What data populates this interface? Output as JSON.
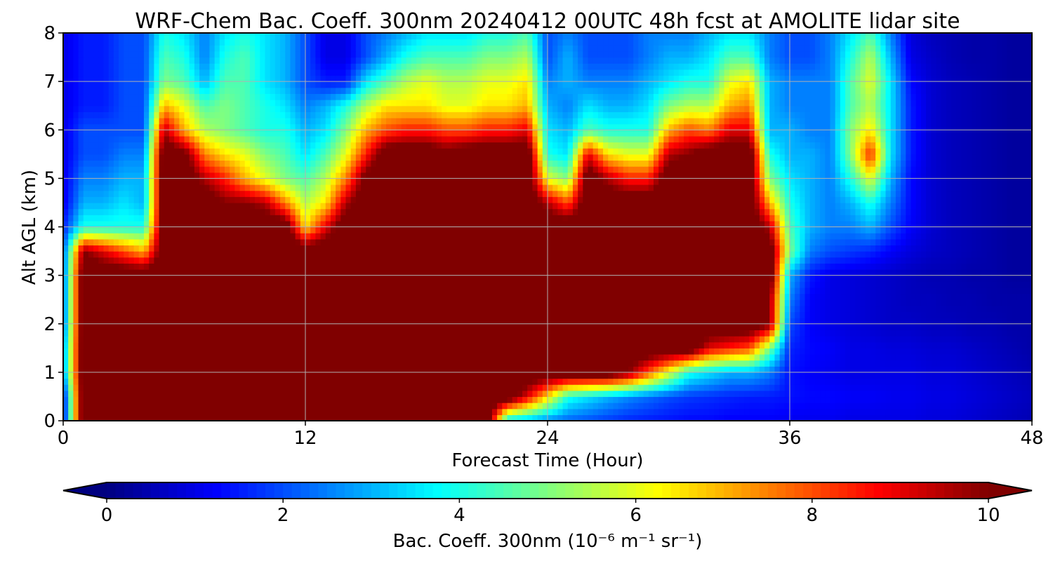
{
  "chart_data": {
    "type": "heatmap",
    "title": "WRF-Chem Bac. Coeff. 300nm  20240412 00UTC 48h fcst at AMOLITE lidar site",
    "xlabel": "Forecast Time (Hour)",
    "ylabel": "Alt AGL (km)",
    "xlim": [
      0,
      48
    ],
    "ylim": [
      0,
      8
    ],
    "x_ticks": [
      "0",
      "12",
      "24",
      "36",
      "48"
    ],
    "y_ticks": [
      "0",
      "1",
      "2",
      "3",
      "4",
      "5",
      "6",
      "7",
      "8"
    ],
    "grid": true,
    "colormap": "jet",
    "colorbar": {
      "label": "Bac. Coeff. 300nm  (10⁻⁶ m⁻¹ sr⁻¹)",
      "range": [
        0,
        10
      ],
      "ticks": [
        "0",
        "2",
        "4",
        "6",
        "8",
        "10"
      ],
      "extend": "both"
    },
    "x": [
      0,
      1,
      2,
      3,
      4,
      5,
      6,
      7,
      8,
      9,
      10,
      11,
      12,
      13,
      14,
      15,
      16,
      17,
      18,
      19,
      20,
      21,
      22,
      23,
      24,
      25,
      26,
      27,
      28,
      29,
      30,
      31,
      32,
      33,
      34,
      35,
      36,
      37,
      38,
      39,
      40,
      41,
      42,
      43,
      44,
      45,
      46,
      47,
      48
    ],
    "y": [
      0,
      0.5,
      1,
      1.5,
      2,
      2.5,
      3,
      3.5,
      4,
      4.5,
      5,
      5.5,
      6,
      6.5,
      7,
      7.5,
      8
    ],
    "values": [
      [
        1.0,
        11.0,
        11.0,
        11.0,
        11.0,
        11.0,
        11.0,
        11.0,
        11.0,
        11.0,
        11.0,
        11.0,
        11.0,
        11.0,
        11.0,
        11.0,
        11.0,
        11.0,
        11.0,
        11.0,
        11.0,
        11.0,
        3.5,
        3.0,
        2.5,
        2.2,
        2.0,
        1.8,
        1.6,
        1.5,
        1.4,
        1.3,
        1.3,
        1.2,
        1.2,
        1.2,
        1.1,
        1.1,
        1.1,
        1.0,
        1.0,
        1.0,
        1.0,
        0.9,
        0.9,
        0.8,
        0.7,
        0.6,
        0.5
      ],
      [
        1.0,
        11.0,
        11.0,
        11.0,
        11.0,
        11.0,
        11.0,
        11.0,
        11.0,
        11.0,
        11.0,
        11.0,
        11.0,
        11.0,
        11.0,
        11.0,
        11.0,
        11.0,
        11.0,
        11.0,
        11.0,
        11.0,
        11.0,
        9.0,
        6.5,
        4.0,
        3.5,
        3.0,
        2.6,
        2.3,
        2.0,
        1.8,
        1.7,
        1.6,
        1.5,
        1.5,
        1.4,
        1.3,
        1.3,
        1.2,
        1.2,
        1.1,
        1.1,
        1.0,
        1.0,
        0.9,
        0.8,
        0.7,
        0.6
      ],
      [
        2.5,
        11.0,
        11.0,
        11.0,
        11.0,
        11.0,
        11.0,
        11.0,
        11.0,
        11.0,
        11.0,
        11.0,
        11.0,
        11.0,
        11.0,
        11.0,
        11.0,
        11.0,
        11.0,
        11.0,
        11.0,
        11.0,
        11.0,
        11.0,
        11.0,
        11.0,
        11.0,
        11.0,
        10.0,
        8.0,
        6.0,
        4.0,
        3.5,
        3.0,
        3.0,
        2.5,
        1.4,
        1.2,
        1.1,
        1.0,
        1.0,
        1.0,
        1.0,
        0.9,
        0.9,
        0.8,
        0.7,
        0.6,
        0.5
      ],
      [
        2.5,
        11.0,
        11.0,
        11.0,
        11.0,
        11.0,
        11.0,
        11.0,
        11.0,
        11.0,
        11.0,
        11.0,
        11.0,
        11.0,
        11.0,
        11.0,
        11.0,
        11.0,
        11.0,
        11.0,
        11.0,
        11.0,
        11.0,
        11.0,
        11.0,
        11.0,
        11.0,
        11.0,
        11.0,
        11.0,
        11.0,
        11.0,
        9.0,
        8.5,
        8.0,
        5.0,
        1.6,
        1.3,
        1.2,
        1.0,
        1.0,
        0.9,
        0.9,
        0.8,
        0.8,
        0.7,
        0.6,
        0.5,
        0.4
      ],
      [
        2.0,
        11.0,
        11.0,
        11.0,
        11.0,
        11.0,
        11.0,
        11.0,
        11.0,
        11.0,
        11.0,
        11.0,
        11.0,
        11.0,
        11.0,
        11.0,
        11.0,
        11.0,
        11.0,
        11.0,
        11.0,
        11.0,
        11.0,
        11.0,
        11.0,
        11.0,
        11.0,
        11.0,
        11.0,
        11.0,
        11.0,
        11.0,
        11.0,
        11.0,
        11.0,
        10.0,
        2.0,
        1.2,
        1.0,
        0.9,
        0.8,
        0.7,
        0.7,
        0.6,
        0.6,
        0.5,
        0.5,
        0.4,
        0.4
      ],
      [
        2.0,
        11.0,
        11.0,
        11.0,
        11.0,
        11.0,
        11.0,
        11.0,
        11.0,
        11.0,
        11.0,
        11.0,
        11.0,
        11.0,
        11.0,
        11.0,
        11.0,
        11.0,
        11.0,
        11.0,
        11.0,
        11.0,
        11.0,
        11.0,
        11.0,
        11.0,
        11.0,
        11.0,
        11.0,
        11.0,
        11.0,
        11.0,
        11.0,
        11.0,
        11.0,
        10.0,
        2.5,
        1.2,
        1.0,
        0.9,
        0.8,
        0.7,
        0.6,
        0.6,
        0.5,
        0.5,
        0.4,
        0.4,
        0.4
      ],
      [
        2.0,
        11.0,
        11.0,
        11.0,
        11.0,
        11.0,
        11.0,
        11.0,
        11.0,
        11.0,
        11.0,
        11.0,
        11.0,
        11.0,
        11.0,
        11.0,
        11.0,
        11.0,
        11.0,
        11.0,
        11.0,
        11.0,
        11.0,
        11.0,
        11.0,
        11.0,
        11.0,
        11.0,
        11.0,
        11.0,
        11.0,
        11.0,
        11.0,
        11.0,
        11.0,
        11.0,
        3.0,
        1.5,
        1.0,
        0.9,
        0.8,
        0.7,
        0.6,
        0.5,
        0.5,
        0.4,
        0.4,
        0.3,
        0.3
      ],
      [
        2.0,
        10.0,
        9.0,
        8.0,
        7.0,
        11.0,
        11.0,
        11.0,
        11.0,
        11.0,
        11.0,
        11.0,
        11.0,
        11.0,
        11.0,
        11.0,
        11.0,
        11.0,
        11.0,
        11.0,
        11.0,
        11.0,
        11.0,
        11.0,
        11.0,
        11.0,
        11.0,
        11.0,
        11.0,
        11.0,
        11.0,
        11.0,
        11.0,
        11.0,
        11.0,
        11.0,
        5.0,
        2.5,
        2.0,
        1.8,
        1.6,
        1.2,
        0.9,
        0.7,
        0.6,
        0.5,
        0.4,
        0.3,
        0.3
      ],
      [
        1.5,
        4.0,
        4.0,
        4.0,
        4.0,
        11.0,
        11.0,
        11.0,
        11.0,
        11.0,
        11.0,
        11.0,
        6.5,
        9.0,
        11.0,
        11.0,
        11.0,
        11.0,
        11.0,
        11.0,
        11.0,
        11.0,
        11.0,
        11.0,
        11.0,
        11.0,
        11.0,
        11.0,
        11.0,
        11.0,
        11.0,
        11.0,
        11.0,
        11.0,
        11.0,
        9.5,
        4.5,
        3.0,
        2.5,
        2.5,
        3.0,
        2.0,
        1.2,
        0.8,
        0.6,
        0.5,
        0.4,
        0.3,
        0.3
      ],
      [
        1.0,
        3.0,
        3.0,
        3.5,
        3.0,
        11.0,
        11.0,
        11.0,
        10.0,
        10.0,
        9.5,
        7.5,
        5.5,
        6.5,
        9.5,
        11.0,
        11.0,
        11.0,
        11.0,
        11.0,
        11.0,
        11.0,
        11.0,
        11.0,
        9.5,
        8.0,
        11.0,
        11.0,
        11.0,
        11.0,
        11.0,
        11.0,
        11.0,
        11.0,
        11.0,
        7.0,
        4.0,
        3.0,
        2.5,
        3.0,
        4.0,
        2.5,
        1.3,
        0.8,
        0.6,
        0.5,
        0.4,
        0.3,
        0.3
      ],
      [
        1.0,
        2.5,
        2.5,
        3.0,
        3.0,
        11.0,
        11.0,
        9.5,
        8.5,
        7.0,
        6.0,
        5.0,
        4.5,
        5.5,
        7.5,
        10.5,
        11.0,
        11.0,
        11.0,
        11.0,
        11.0,
        11.0,
        11.0,
        11.0,
        6.0,
        5.0,
        11.0,
        9.5,
        8.5,
        8.5,
        11.0,
        11.0,
        11.0,
        11.0,
        11.0,
        5.0,
        3.5,
        3.0,
        2.5,
        4.0,
        6.0,
        3.0,
        1.3,
        0.8,
        0.6,
        0.5,
        0.4,
        0.3,
        0.3
      ],
      [
        1.0,
        2.0,
        2.0,
        2.5,
        2.5,
        11.0,
        10.5,
        7.5,
        6.5,
        6.0,
        5.0,
        4.5,
        3.5,
        4.5,
        6.0,
        8.5,
        11.0,
        11.0,
        11.0,
        10.5,
        11.0,
        11.0,
        11.0,
        11.0,
        4.0,
        3.5,
        9.0,
        6.5,
        6.0,
        6.0,
        9.5,
        10.0,
        11.0,
        11.0,
        11.0,
        4.0,
        3.0,
        3.0,
        2.5,
        5.0,
        8.5,
        3.5,
        1.5,
        0.8,
        0.6,
        0.5,
        0.4,
        0.3,
        0.3
      ],
      [
        1.0,
        2.0,
        2.0,
        2.0,
        2.0,
        9.5,
        7.0,
        5.5,
        5.0,
        4.5,
        4.0,
        4.0,
        3.0,
        3.5,
        5.0,
        7.0,
        8.0,
        8.5,
        8.5,
        8.0,
        8.0,
        8.5,
        8.5,
        9.0,
        3.5,
        3.0,
        4.5,
        4.0,
        4.0,
        4.0,
        7.0,
        8.0,
        7.5,
        9.0,
        9.0,
        3.0,
        3.0,
        2.5,
        2.5,
        5.0,
        6.5,
        3.5,
        1.5,
        0.8,
        0.6,
        0.5,
        0.4,
        0.3,
        0.3
      ],
      [
        1.0,
        1.5,
        1.5,
        2.0,
        2.0,
        7.0,
        6.0,
        4.5,
        5.0,
        4.5,
        4.0,
        3.5,
        2.5,
        3.0,
        4.0,
        5.5,
        6.5,
        6.5,
        6.5,
        6.0,
        6.0,
        6.5,
        6.5,
        7.0,
        3.0,
        2.5,
        3.5,
        3.0,
        3.0,
        3.5,
        5.0,
        5.5,
        5.5,
        7.0,
        7.5,
        3.0,
        2.5,
        2.5,
        2.5,
        4.5,
        5.5,
        3.5,
        1.5,
        0.8,
        0.6,
        0.5,
        0.4,
        0.3,
        0.3
      ],
      [
        1.0,
        1.5,
        1.5,
        2.0,
        2.0,
        5.0,
        4.5,
        3.0,
        4.5,
        4.5,
        3.5,
        3.0,
        2.0,
        1.5,
        1.5,
        3.5,
        4.5,
        5.5,
        6.0,
        5.5,
        5.5,
        6.0,
        6.0,
        6.5,
        2.5,
        3.0,
        2.5,
        2.5,
        2.5,
        3.0,
        3.5,
        4.0,
        4.0,
        6.0,
        6.5,
        3.0,
        2.5,
        2.5,
        2.5,
        4.5,
        6.0,
        3.5,
        1.3,
        0.8,
        0.6,
        0.5,
        0.4,
        0.3,
        0.3
      ],
      [
        1.0,
        1.5,
        1.5,
        2.0,
        2.0,
        4.5,
        4.0,
        2.5,
        4.0,
        4.5,
        3.5,
        3.0,
        2.0,
        1.0,
        1.0,
        2.0,
        3.0,
        4.0,
        4.5,
        4.5,
        4.5,
        5.0,
        5.0,
        5.5,
        2.0,
        3.0,
        2.0,
        2.0,
        2.0,
        2.5,
        3.0,
        3.0,
        3.5,
        4.5,
        4.5,
        2.5,
        2.0,
        2.0,
        2.5,
        4.0,
        5.5,
        3.0,
        1.0,
        0.7,
        0.5,
        0.4,
        0.4,
        0.3,
        0.3
      ],
      [
        1.0,
        1.5,
        1.5,
        2.0,
        2.0,
        4.0,
        3.5,
        2.5,
        3.5,
        4.0,
        3.5,
        3.0,
        2.0,
        1.0,
        1.0,
        2.0,
        2.5,
        3.0,
        3.5,
        3.5,
        3.5,
        4.0,
        4.0,
        4.5,
        2.0,
        2.5,
        2.0,
        2.0,
        2.0,
        2.5,
        2.5,
        2.5,
        3.0,
        3.5,
        3.5,
        2.5,
        2.0,
        2.0,
        2.5,
        3.5,
        4.5,
        2.5,
        0.9,
        0.6,
        0.5,
        0.4,
        0.4,
        0.3,
        0.3
      ]
    ]
  }
}
